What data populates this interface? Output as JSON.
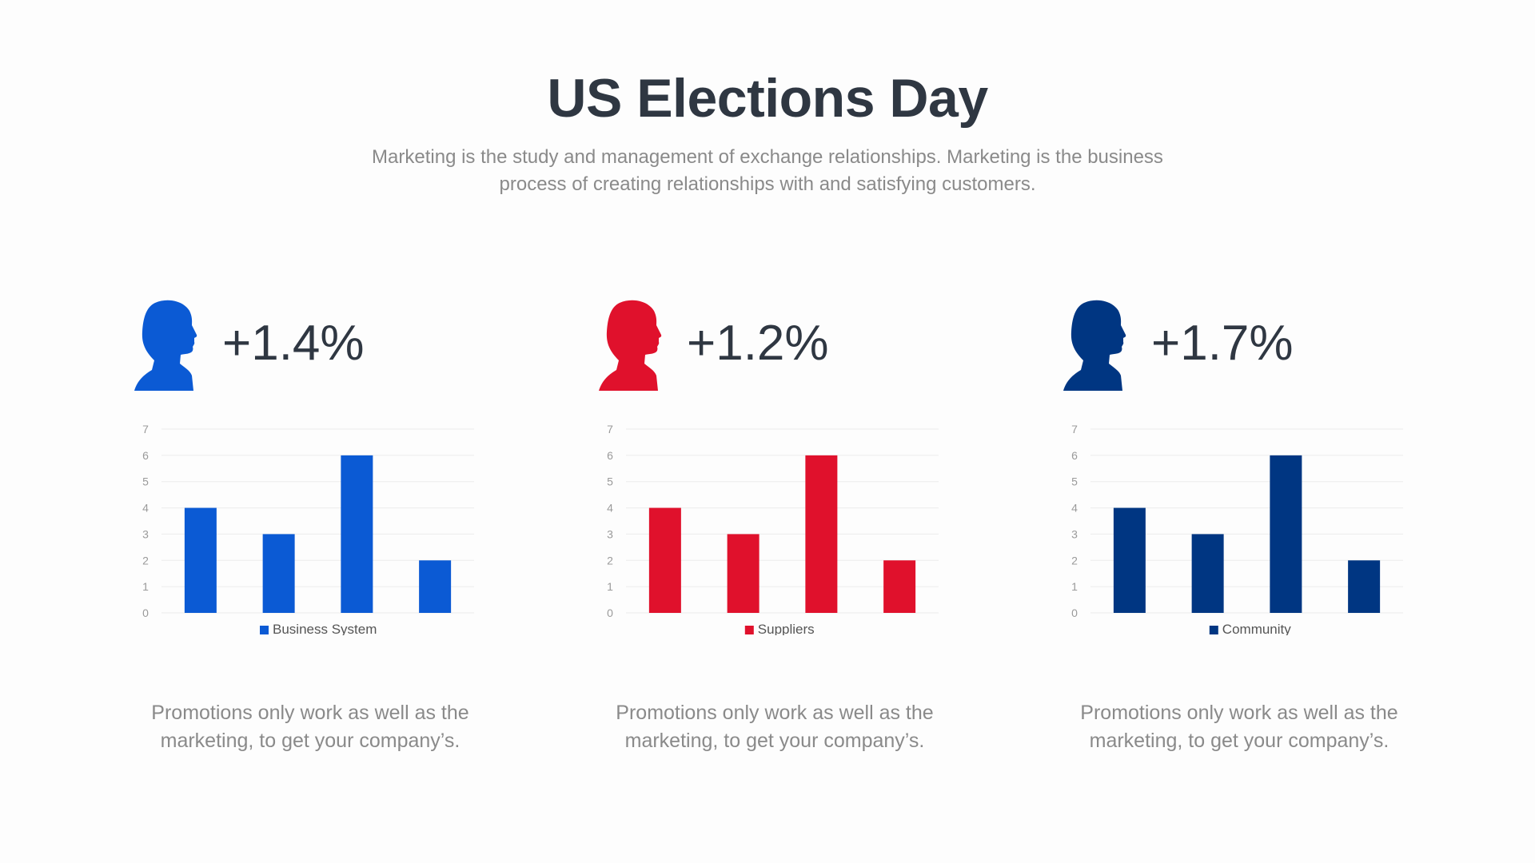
{
  "header": {
    "title": "US Elections Day",
    "subtitle": "Marketing is the study and management of exchange relationships. Marketing is the business process of creating relationships with and satisfying customers."
  },
  "panels": [
    {
      "icon": "person-head-silhouette-icon",
      "color": "#0b5ad4",
      "percent": "+1.4%",
      "caption": "Promotions only work as well as the marketing, to get your company’s."
    },
    {
      "icon": "person-head-silhouette-icon",
      "color": "#e0112c",
      "percent": "+1.2%",
      "caption": "Promotions only work as well as the marketing, to get your company’s."
    },
    {
      "icon": "person-head-silhouette-icon",
      "color": "#003682",
      "percent": "+1.7%",
      "caption": "Promotions only work as well as the marketing, to get your company’s."
    }
  ],
  "chart_data": [
    {
      "type": "bar",
      "categories": [
        "",
        "",
        "",
        ""
      ],
      "series": [
        {
          "name": "Business System",
          "values": [
            4,
            3,
            6,
            2
          ]
        }
      ],
      "ylim": [
        0,
        7
      ],
      "yticks": [
        "0",
        "1",
        "2",
        "3",
        "4",
        "5",
        "6",
        "7"
      ],
      "grid": true,
      "legend": "bottom",
      "color": "#0b5ad4"
    },
    {
      "type": "bar",
      "categories": [
        "",
        "",
        "",
        ""
      ],
      "series": [
        {
          "name": "Suppliers",
          "values": [
            4,
            3,
            6,
            2
          ]
        }
      ],
      "ylim": [
        0,
        7
      ],
      "yticks": [
        "0",
        "1",
        "2",
        "3",
        "4",
        "5",
        "6",
        "7"
      ],
      "grid": true,
      "legend": "bottom",
      "color": "#e0112c"
    },
    {
      "type": "bar",
      "categories": [
        "",
        "",
        "",
        ""
      ],
      "series": [
        {
          "name": "Community",
          "values": [
            4,
            3,
            6,
            2
          ]
        }
      ],
      "ylim": [
        0,
        7
      ],
      "yticks": [
        "0",
        "1",
        "2",
        "3",
        "4",
        "5",
        "6",
        "7"
      ],
      "grid": true,
      "legend": "bottom",
      "color": "#003682"
    }
  ]
}
